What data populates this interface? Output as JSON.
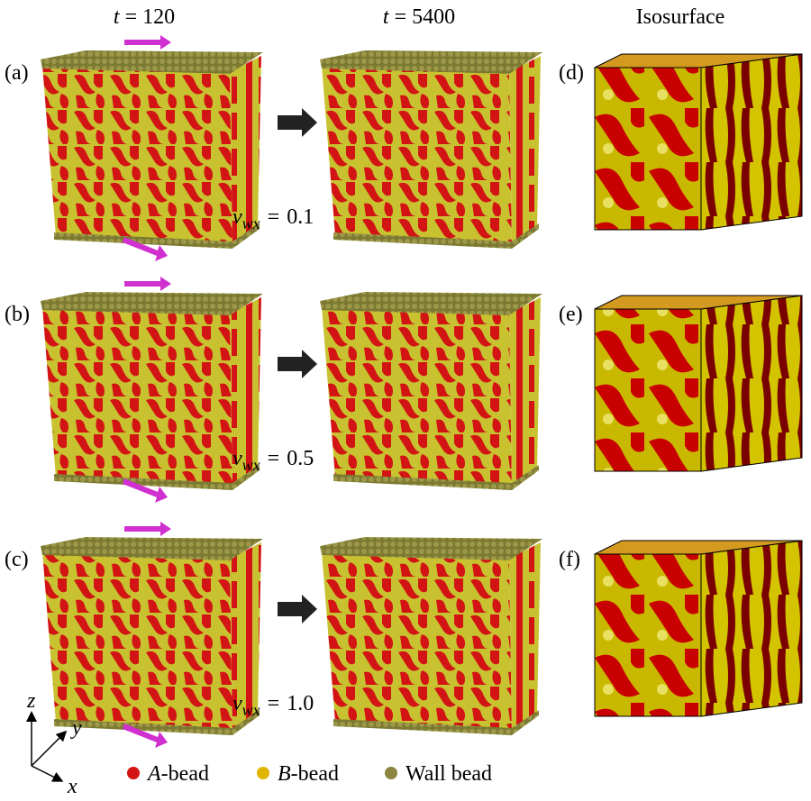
{
  "columns": [
    {
      "symbol": "t",
      "relation": "=",
      "value": "120"
    },
    {
      "symbol": "t",
      "relation": "=",
      "value": "5400"
    },
    {
      "title": "Isosurface"
    }
  ],
  "rows": [
    {
      "label": "(a)",
      "iso_label": "(d)",
      "velocity": {
        "symbol": "v",
        "subscript": "wx",
        "relation": "=",
        "value": "0.1"
      }
    },
    {
      "label": "(b)",
      "iso_label": "(e)",
      "velocity": {
        "symbol": "v",
        "subscript": "wx",
        "relation": "=",
        "value": "0.5"
      }
    },
    {
      "label": "(c)",
      "iso_label": "(f)",
      "velocity": {
        "symbol": "v",
        "subscript": "wx",
        "relation": "=",
        "value": "1.0"
      }
    }
  ],
  "axes": {
    "z": "z",
    "y": "y",
    "x": "x"
  },
  "legend": [
    {
      "symbol": "A",
      "suffix": "-bead"
    },
    {
      "symbol": "B",
      "suffix": "-bead"
    },
    {
      "text": "Wall bead"
    }
  ]
}
